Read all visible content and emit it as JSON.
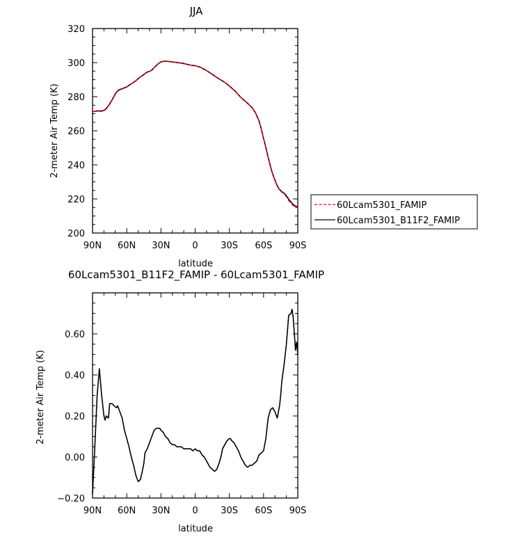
{
  "chart_data": [
    {
      "type": "line",
      "title": "JJA",
      "xlabel": "latitude",
      "ylabel": "2-meter Air Temp (K)",
      "xlim": [
        90,
        -90
      ],
      "ylim": [
        200,
        320
      ],
      "x_ticks": [
        90,
        60,
        30,
        0,
        -30,
        -60,
        -90
      ],
      "x_tick_labels": [
        "90N",
        "60N",
        "30N",
        "0",
        "30S",
        "60S",
        "90S"
      ],
      "y_ticks": [
        200,
        220,
        240,
        260,
        280,
        300,
        320
      ],
      "y_tick_labels": [
        "200",
        "220",
        "240",
        "260",
        "280",
        "300",
        "320"
      ],
      "legend_position": "right",
      "series": [
        {
          "name": "60Lcam5301_FAMIP",
          "color": "#e8001c",
          "style": "dashed",
          "x": [
            90,
            85,
            82,
            80,
            78,
            75,
            72,
            70,
            68,
            65,
            62,
            60,
            58,
            55,
            52,
            50,
            48,
            45,
            42,
            40,
            38,
            35,
            32,
            30,
            28,
            25,
            22,
            20,
            15,
            10,
            5,
            0,
            -5,
            -10,
            -15,
            -20,
            -25,
            -30,
            -35,
            -40,
            -45,
            -50,
            -53,
            -56,
            -58,
            -60,
            -62,
            -64,
            -66,
            -68,
            -70,
            -72,
            -74,
            -76,
            -78,
            -80,
            -82,
            -84,
            -86,
            -88,
            -90
          ],
          "y": [
            271.3,
            271.6,
            271.3,
            271.8,
            272.8,
            275.5,
            279,
            281.5,
            283.3,
            284.3,
            285,
            285.6,
            286.6,
            287.9,
            289.3,
            290.6,
            291.7,
            293.1,
            294.6,
            294.9,
            295.6,
            297.6,
            299.5,
            300.3,
            300.7,
            300.7,
            300.5,
            300.3,
            299.9,
            299.4,
            298.6,
            298.2,
            297.2,
            295.3,
            293.2,
            290.9,
            288.8,
            286.2,
            283.2,
            279.6,
            276.7,
            273.6,
            270.4,
            265.8,
            261,
            255.5,
            250.1,
            244.3,
            238.9,
            234.5,
            230.8,
            227.5,
            225.3,
            224,
            223.1,
            221.3,
            219.1,
            217.6,
            216.1,
            215.3,
            215
          ]
        },
        {
          "name": "60Lcam5301_B11F2_FAMIP",
          "color": "#000000",
          "style": "solid",
          "x": [
            90,
            85,
            82,
            80,
            78,
            75,
            72,
            70,
            68,
            65,
            62,
            60,
            58,
            55,
            52,
            50,
            48,
            45,
            42,
            40,
            38,
            35,
            32,
            30,
            28,
            25,
            22,
            20,
            15,
            10,
            5,
            0,
            -5,
            -10,
            -15,
            -20,
            -25,
            -30,
            -35,
            -40,
            -45,
            -50,
            -53,
            -56,
            -58,
            -60,
            -62,
            -64,
            -66,
            -68,
            -70,
            -72,
            -74,
            -76,
            -78,
            -80,
            -82,
            -84,
            -86,
            -88,
            -90
          ],
          "y": [
            271.2,
            271.7,
            271.6,
            272,
            273,
            275.7,
            279.2,
            281.7,
            283.5,
            284.5,
            285.2,
            285.8,
            286.7,
            288,
            289.4,
            290.6,
            291.6,
            293,
            294.5,
            294.8,
            295.6,
            297.7,
            299.6,
            300.4,
            300.8,
            300.8,
            300.6,
            300.4,
            300,
            299.5,
            298.6,
            298.2,
            297.2,
            295.3,
            293.1,
            290.8,
            288.8,
            286.3,
            283.3,
            279.6,
            276.7,
            273.6,
            270.4,
            265.8,
            261,
            255.5,
            250.2,
            244.5,
            239.2,
            234.7,
            231,
            227.7,
            225.5,
            224.3,
            223.4,
            221.9,
            219.8,
            218.3,
            216.7,
            215.8,
            215.3
          ]
        }
      ]
    },
    {
      "type": "line",
      "title": "60Lcam5301_B11F2_FAMIP - 60Lcam5301_FAMIP",
      "xlabel": "latitude",
      "ylabel": "2-meter Air Temp (K)",
      "xlim": [
        90,
        -90
      ],
      "ylim": [
        -0.2,
        0.8
      ],
      "x_ticks": [
        90,
        60,
        30,
        0,
        -30,
        -60,
        -90
      ],
      "x_tick_labels": [
        "90N",
        "60N",
        "30N",
        "0",
        "30S",
        "60S",
        "90S"
      ],
      "y_ticks": [
        -0.2,
        0,
        0.2,
        0.4,
        0.6
      ],
      "y_tick_labels": [
        "-0.20",
        "0.00",
        "0.20",
        "0.40",
        "0.60"
      ],
      "series": [
        {
          "color": "#000000",
          "style": "solid",
          "x": [
            90,
            88,
            86,
            84,
            82,
            80,
            79,
            78,
            76,
            75,
            73,
            71,
            69,
            68,
            66,
            64,
            62,
            60,
            58,
            56,
            54,
            52,
            50,
            48,
            46,
            45,
            44,
            43,
            42,
            40,
            38,
            36,
            34,
            32,
            31,
            30,
            28,
            26,
            24,
            22,
            20,
            18,
            16,
            14,
            12,
            10,
            8,
            6,
            4,
            2,
            0,
            -2,
            -4,
            -6,
            -8,
            -10,
            -12,
            -13,
            -15,
            -17,
            -19,
            -21,
            -23,
            -24,
            -26,
            -28,
            -30,
            -31,
            -32,
            -34,
            -36,
            -38,
            -40,
            -42,
            -44,
            -46,
            -48,
            -50,
            -52,
            -54,
            -56,
            -58,
            -60,
            -62,
            -64,
            -66,
            -68,
            -70,
            -72,
            -74,
            -75,
            -76,
            -78,
            -80,
            -82,
            -84,
            -85,
            -86,
            -87,
            -88,
            -89,
            -90
          ],
          "y": [
            -0.18,
            0.05,
            0.3,
            0.43,
            0.3,
            0.2,
            0.18,
            0.2,
            0.19,
            0.26,
            0.26,
            0.25,
            0.24,
            0.25,
            0.22,
            0.19,
            0.13,
            0.09,
            0.05,
            0,
            -0.04,
            -0.09,
            -0.12,
            -0.11,
            -0.06,
            -0.03,
            0.02,
            0.03,
            0.04,
            0.07,
            0.1,
            0.13,
            0.14,
            0.14,
            0.14,
            0.13,
            0.12,
            0.1,
            0.09,
            0.07,
            0.06,
            0.06,
            0.05,
            0.05,
            0.05,
            0.04,
            0.04,
            0.04,
            0.04,
            0.03,
            0.04,
            0.03,
            0.03,
            0.01,
            0,
            -0.02,
            -0.04,
            -0.05,
            -0.06,
            -0.07,
            -0.06,
            -0.03,
            0.01,
            0.04,
            0.06,
            0.08,
            0.09,
            0.09,
            0.08,
            0.07,
            0.05,
            0.03,
            0,
            -0.02,
            -0.04,
            -0.05,
            -0.04,
            -0.04,
            -0.03,
            -0.02,
            0.01,
            0.02,
            0.03,
            0.09,
            0.19,
            0.23,
            0.24,
            0.22,
            0.19,
            0.25,
            0.3,
            0.37,
            0.45,
            0.55,
            0.69,
            0.7,
            0.72,
            0.68,
            0.6,
            0.52,
            0.56,
            0.5
          ]
        }
      ]
    }
  ]
}
